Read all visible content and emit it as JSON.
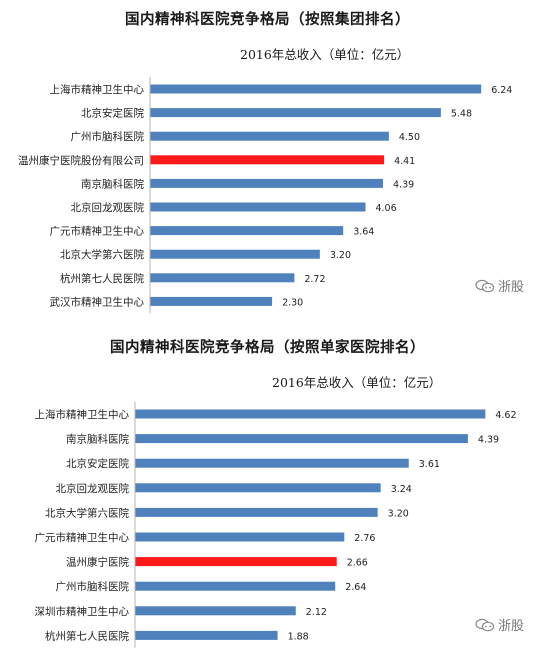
{
  "colors": {
    "bar": "#4f81bd",
    "highlight": "#ff1a1a"
  },
  "watermark": {
    "text": "浙股",
    "icon": "speech-bubble-icon"
  },
  "chart_data": [
    {
      "type": "bar",
      "orientation": "horizontal",
      "title": "国内精神科医院竞争格局（按照集团排名）",
      "subtitle": "2016年总收入（单位：亿元）",
      "categories": [
        "上海市精神卫生中心",
        "北京安定医院",
        "广州市脑科医院",
        "温州康宁医院股份有限公司",
        "南京脑科医院",
        "北京回龙观医院",
        "广元市精神卫生中心",
        "北京大学第六医院",
        "杭州第七人民医院",
        "武汉市精神卫生中心"
      ],
      "values": [
        6.24,
        5.48,
        4.5,
        4.41,
        4.39,
        4.06,
        3.64,
        3.2,
        2.72,
        2.3
      ],
      "value_labels": [
        "6.24",
        "5.48",
        "4.50",
        "4.41",
        "4.39",
        "4.06",
        "3.64",
        "3.20",
        "2.72",
        "2.30"
      ],
      "highlight_index": 3,
      "xlim": [
        0,
        6.5
      ],
      "grid": false,
      "legend": "none"
    },
    {
      "type": "bar",
      "orientation": "horizontal",
      "title": "国内精神科医院竞争格局（按照单家医院排名）",
      "subtitle": "2016年总收入（单位：亿元）",
      "categories": [
        "上海市精神卫生中心",
        "南京脑科医院",
        "北京安定医院",
        "北京回龙观医院",
        "北京大学第六医院",
        "广元市精神卫生中心",
        "温州康宁医院",
        "广州市脑科医院",
        "深圳市精神卫生中心",
        "杭州第七人民医院"
      ],
      "values": [
        4.62,
        4.39,
        3.61,
        3.24,
        3.2,
        2.76,
        2.66,
        2.64,
        2.12,
        1.88
      ],
      "value_labels": [
        "4.62",
        "4.39",
        "3.61",
        "3.24",
        "3.20",
        "2.76",
        "2.66",
        "2.64",
        "2.12",
        "1.88"
      ],
      "highlight_index": 6,
      "xlim": [
        0,
        4.8
      ],
      "grid": false,
      "legend": "none"
    }
  ]
}
